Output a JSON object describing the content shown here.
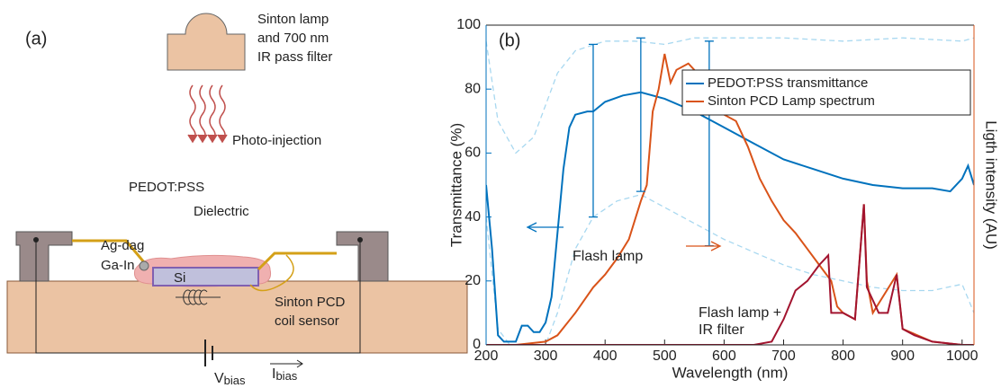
{
  "diagram": {
    "panel_label": "(a)",
    "lamp_label": [
      "Sinton lamp",
      "and 700 nm",
      "IR pass filter"
    ],
    "photo_label": "Photo-injection",
    "pedot_label": "PEDOT:PSS",
    "dielectric_label": "Dielectric",
    "agdag_label": "Ag-dag",
    "gain_label": "Ga-In",
    "si_label": "Si",
    "coil_label": [
      "Sinton PCD",
      "coil sensor"
    ],
    "vbias": [
      "V",
      "bias"
    ],
    "ibias": [
      "I",
      "bias"
    ]
  },
  "chart_data": {
    "type": "line",
    "panel_label": "(b)",
    "xlabel": "Wavelength (nm)",
    "ylabel": "Transmittance (%)",
    "y2label": "Ligth intensity (AU)",
    "xlim": [
      200,
      1020
    ],
    "ylim": [
      0,
      100
    ],
    "xticks": [
      200,
      300,
      400,
      500,
      600,
      700,
      800,
      900,
      1000
    ],
    "yticks": [
      0,
      20,
      40,
      60,
      80,
      100
    ],
    "legend": "upper right",
    "series": [
      {
        "color": "#a8d8f0",
        "dashed": true,
        "x": [
          200,
          220,
          250,
          280,
          300,
          320,
          350,
          400,
          450,
          500,
          550,
          600,
          700,
          800,
          900,
          1000,
          1020
        ],
        "values": [
          95,
          70,
          60,
          65,
          75,
          85,
          92,
          95,
          95,
          94,
          96,
          96,
          96,
          95,
          96,
          95,
          96
        ]
      },
      {
        "color": "#a8d8f0",
        "dashed": true,
        "x": [
          200,
          220,
          240,
          300,
          320,
          350,
          380,
          420,
          460,
          500,
          550,
          600,
          650,
          700,
          750,
          800,
          850,
          900,
          950,
          1000,
          1020
        ],
        "values": [
          40,
          5,
          0,
          0,
          10,
          30,
          40,
          45,
          47,
          43,
          38,
          33,
          29,
          25,
          22,
          20,
          18,
          17,
          17,
          19,
          10
        ]
      },
      {
        "name": "PEDOT:PSS transmittance",
        "color": "#0072bd",
        "x": [
          200,
          210,
          220,
          230,
          250,
          260,
          270,
          280,
          290,
          300,
          310,
          320,
          330,
          340,
          350,
          370,
          380,
          400,
          430,
          460,
          500,
          550,
          600,
          650,
          700,
          750,
          800,
          850,
          900,
          950,
          980,
          1000,
          1010,
          1020
        ],
        "values": [
          50,
          30,
          3,
          1,
          1,
          6,
          6,
          4,
          4,
          7,
          15,
          35,
          55,
          68,
          72,
          73,
          73,
          76,
          78,
          79,
          77,
          73,
          68,
          63,
          58,
          55,
          52,
          50,
          49,
          49,
          48,
          52,
          56,
          50
        ]
      },
      {
        "name": "Sinton PCD Lamp spectrum",
        "color": "#d95319",
        "x": [
          250,
          300,
          320,
          350,
          380,
          400,
          420,
          440,
          460,
          470,
          480,
          490,
          500,
          510,
          520,
          540,
          560,
          580,
          600,
          620,
          640,
          660,
          680,
          700,
          720,
          740,
          760,
          780,
          790,
          800,
          820,
          835,
          840,
          850,
          890,
          900,
          950,
          1000,
          1020
        ],
        "values": [
          0,
          1,
          3,
          10,
          18,
          22,
          27,
          33,
          45,
          50,
          73,
          80,
          91,
          82,
          86,
          88,
          84,
          80,
          72,
          70,
          62,
          52,
          45,
          39,
          35,
          30,
          25,
          20,
          12,
          10,
          8,
          44,
          20,
          10,
          22,
          5,
          1,
          0,
          0
        ]
      },
      {
        "color": "#a2142f",
        "x": [
          200,
          650,
          680,
          700,
          720,
          740,
          760,
          775,
          780,
          800,
          820,
          835,
          840,
          860,
          875,
          890,
          900,
          920,
          950,
          1000,
          1020
        ],
        "values": [
          0,
          0,
          1,
          8,
          17,
          20,
          25,
          28,
          10,
          10,
          8,
          44,
          18,
          10,
          10,
          22,
          5,
          3,
          1,
          0,
          0
        ]
      }
    ],
    "error_bars": {
      "color": "#0072bd",
      "x": [
        380,
        460,
        575
      ],
      "low": [
        40,
        48,
        31
      ],
      "high": [
        94,
        96,
        95
      ]
    },
    "annotations": [
      {
        "text": "Flash lamp",
        "color": "#d95319"
      },
      {
        "text": "Flash lamp +",
        "color": "#a2142f"
      },
      {
        "text": "IR filter",
        "color": "#a2142f"
      }
    ]
  }
}
